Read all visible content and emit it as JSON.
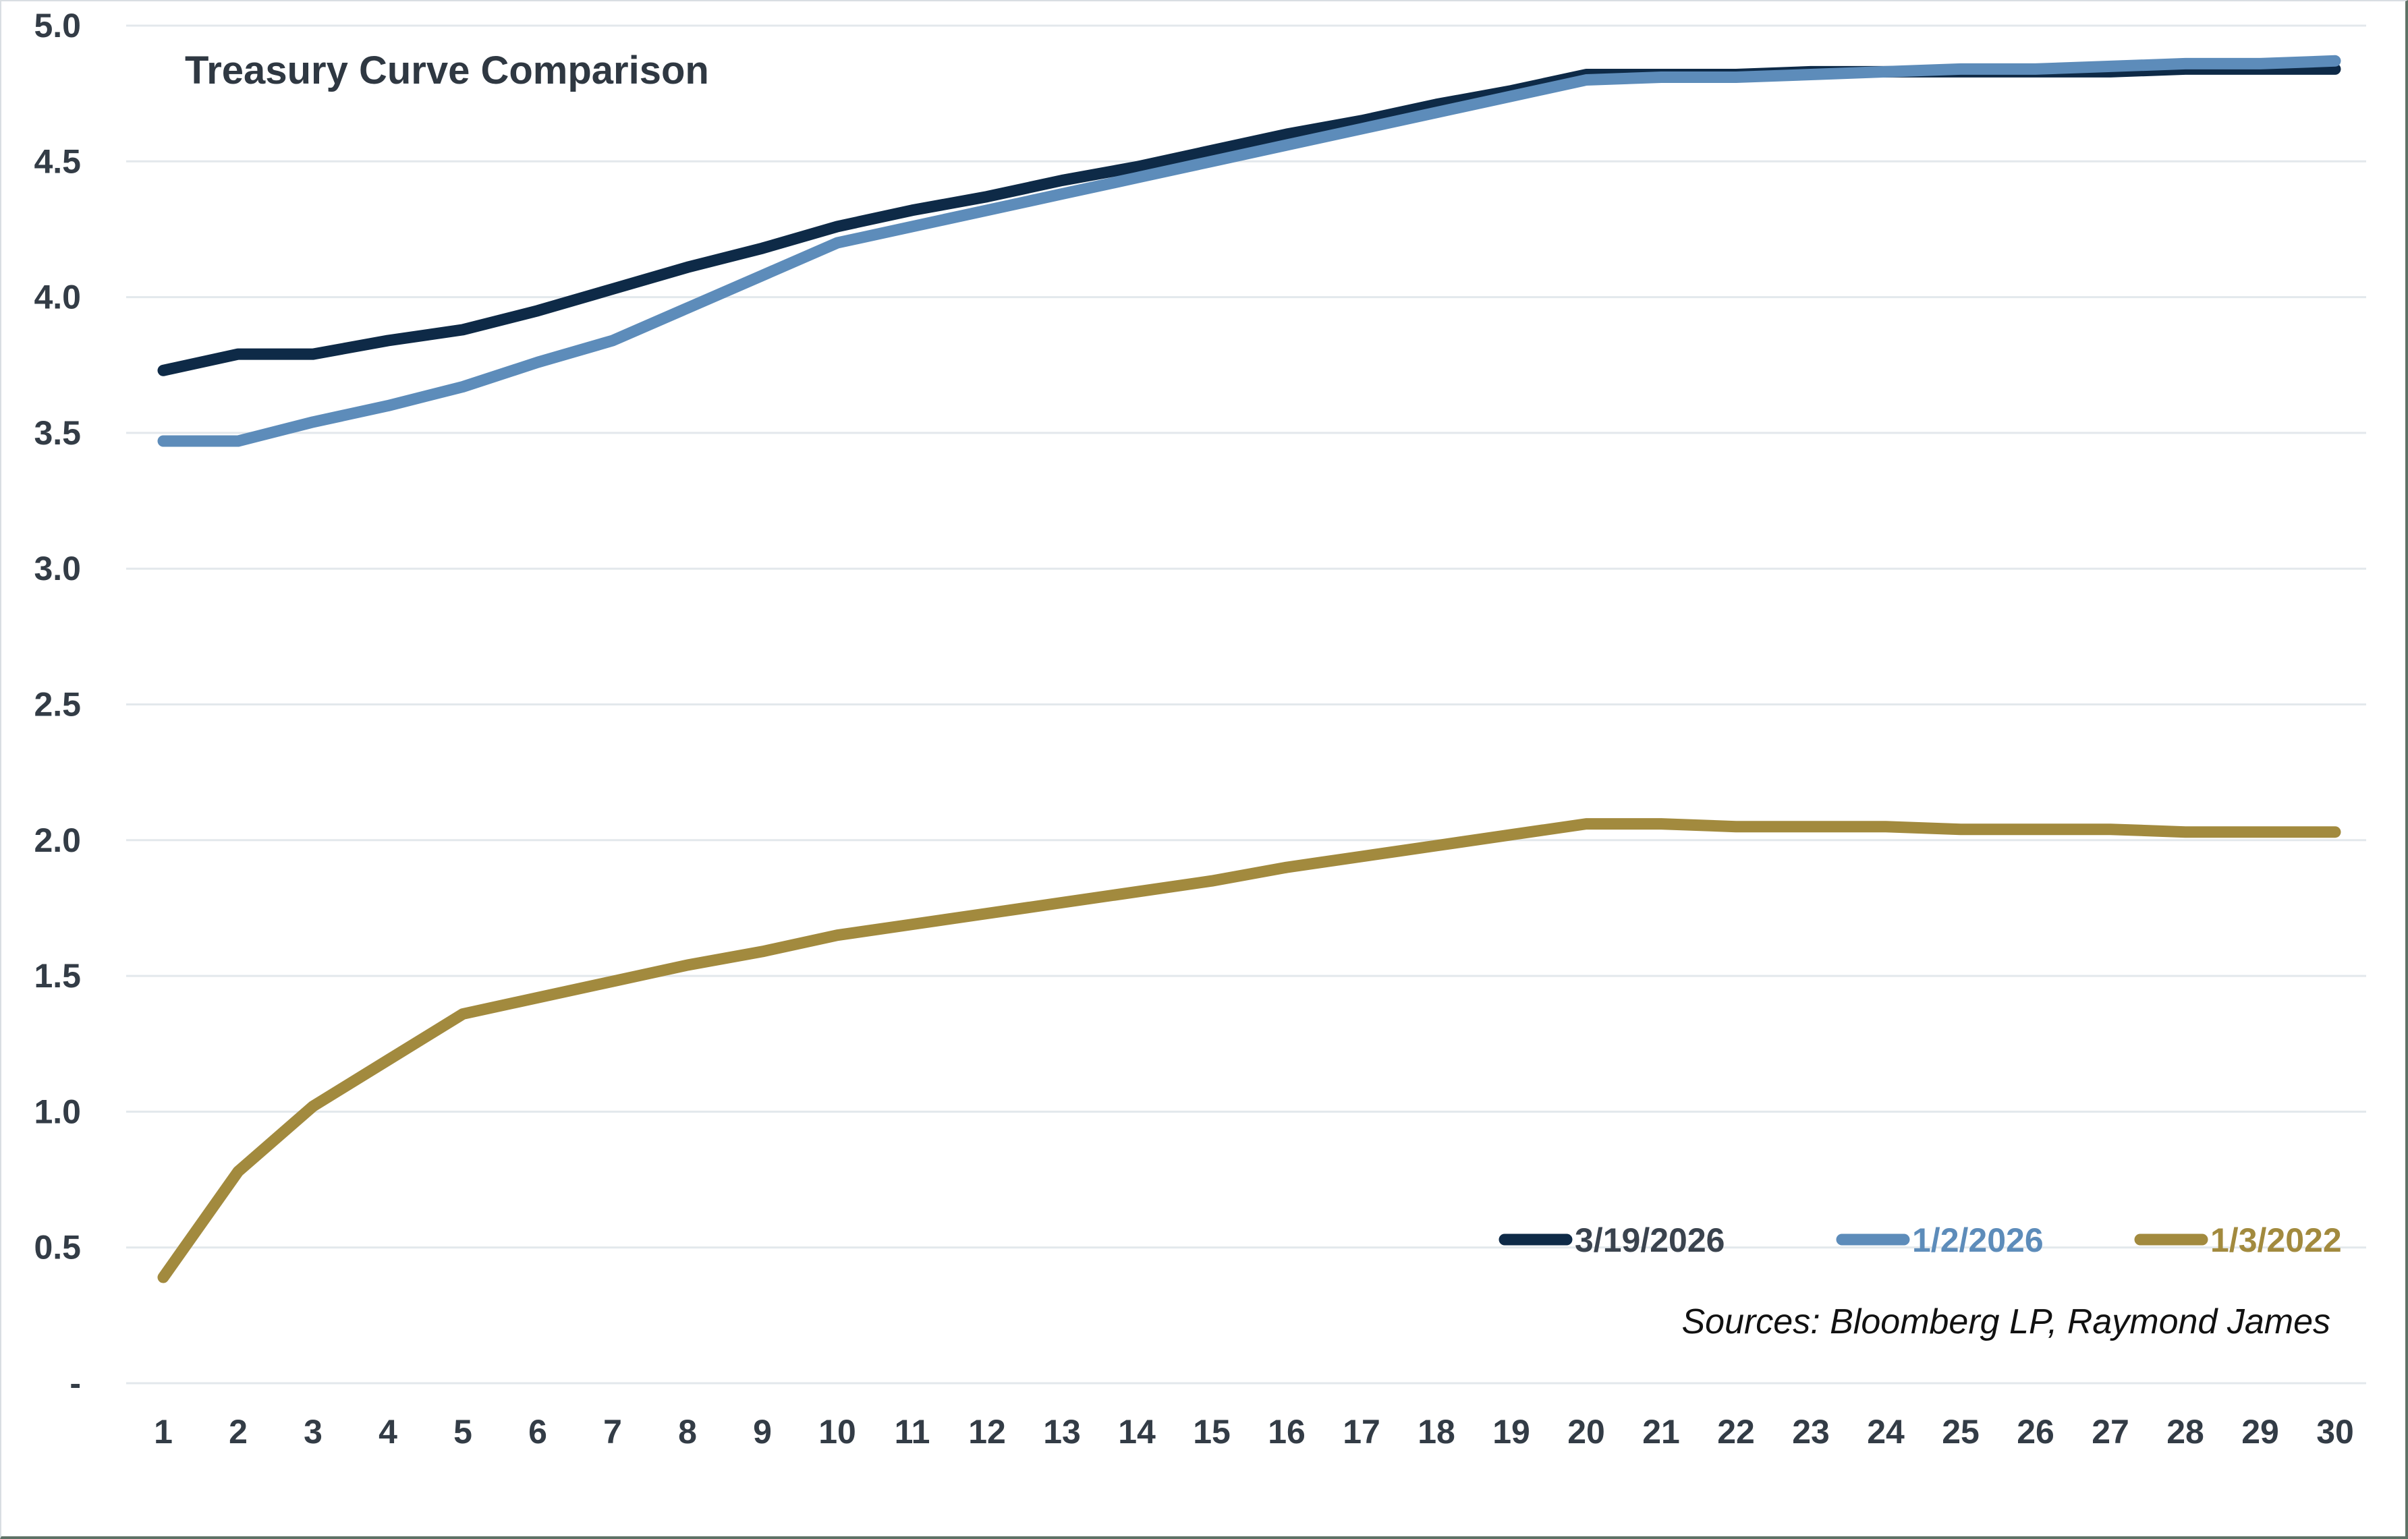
{
  "title": "Treasury Curve Comparison",
  "source_note": "Sources: Bloomberg LP, Raymond James",
  "colors": {
    "background": "#ffffff",
    "gridline": "#e3e8ec",
    "axis_text": "#333c46",
    "title_text": "#2f3842",
    "source_text": "#111111",
    "frame_light": "#d9dee2",
    "frame_dark": "#5e7266"
  },
  "chart_data": {
    "type": "line",
    "title": "Treasury Curve Comparison",
    "xlabel": "",
    "ylabel": "",
    "grid": true,
    "legend_position": "bottom-right",
    "x": [
      1,
      2,
      3,
      4,
      5,
      6,
      7,
      8,
      9,
      10,
      11,
      12,
      13,
      14,
      15,
      16,
      17,
      18,
      19,
      20,
      21,
      22,
      23,
      24,
      25,
      26,
      27,
      28,
      29,
      30
    ],
    "y_axis": {
      "min": 0,
      "max": 5,
      "step": 0.5,
      "tick_labels": [
        "5.0",
        "4.5",
        "4.0",
        "3.5",
        "3.0",
        "2.5",
        "2.0",
        "1.5",
        "1.0",
        "0.5",
        "-"
      ]
    },
    "series": [
      {
        "name": "3/19/2026",
        "color": "#0e2a47",
        "label_color": "#3a434e",
        "values": [
          3.73,
          3.79,
          3.79,
          3.84,
          3.88,
          3.95,
          4.03,
          4.11,
          4.18,
          4.26,
          4.32,
          4.37,
          4.43,
          4.48,
          4.54,
          4.6,
          4.65,
          4.71,
          4.76,
          4.82,
          4.82,
          4.82,
          4.83,
          4.83,
          4.83,
          4.83,
          4.83,
          4.84,
          4.84,
          4.84
        ]
      },
      {
        "name": "1/2/2026",
        "color": "#5d8cba",
        "label_color": "#5d8cba",
        "values": [
          3.47,
          3.47,
          3.54,
          3.6,
          3.67,
          3.76,
          3.84,
          3.96,
          4.08,
          4.2,
          4.26,
          4.32,
          4.38,
          4.44,
          4.5,
          4.56,
          4.62,
          4.68,
          4.74,
          4.8,
          4.81,
          4.81,
          4.82,
          4.83,
          4.84,
          4.84,
          4.85,
          4.86,
          4.86,
          4.87
        ]
      },
      {
        "name": "1/3/2022",
        "color": "#a28a3e",
        "label_color": "#a28a3e",
        "values": [
          0.39,
          0.78,
          1.02,
          1.19,
          1.36,
          1.42,
          1.48,
          1.54,
          1.59,
          1.65,
          1.69,
          1.73,
          1.77,
          1.81,
          1.85,
          1.9,
          1.94,
          1.98,
          2.02,
          2.06,
          2.06,
          2.05,
          2.05,
          2.05,
          2.04,
          2.04,
          2.04,
          2.03,
          2.03,
          2.03
        ]
      }
    ]
  }
}
